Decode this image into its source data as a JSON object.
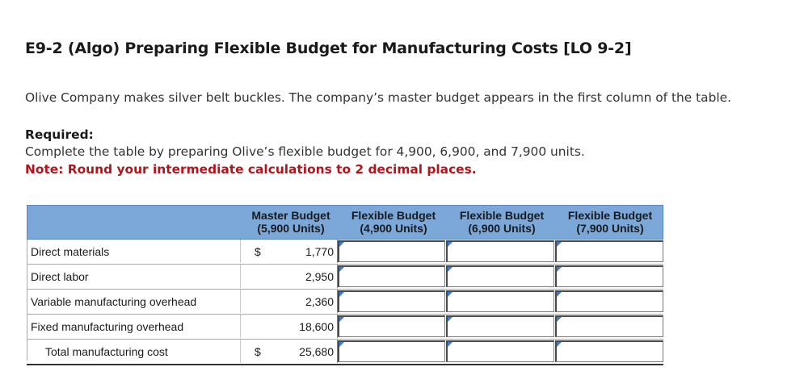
{
  "header": {
    "title": "E9-2 (Algo) Preparing Flexible Budget for Manufacturing Costs [LO 9-2]"
  },
  "problem": {
    "intro": "Olive Company makes silver belt buckles. The company’s master budget appears in the first column of the table.",
    "required_label": "Required:",
    "required_text": "Complete the table by preparing Olive’s flexible budget for 4,900, 6,900, and 7,900 units.",
    "note": "Note: Round your intermediate calculations to 2 decimal places."
  },
  "table": {
    "columns": [
      {
        "line1": "Master Budget",
        "line2": "(5,900 Units)"
      },
      {
        "line1": "Flexible Budget",
        "line2": "(4,900 Units)"
      },
      {
        "line1": "Flexible Budget",
        "line2": "(6,900 Units)"
      },
      {
        "line1": "Flexible Budget",
        "line2": "(7,900 Units)"
      }
    ],
    "rows": [
      {
        "label": "Direct materials",
        "dollar": "$",
        "master": "1,770",
        "flex1": "",
        "flex2": "",
        "flex3": ""
      },
      {
        "label": "Direct labor",
        "dollar": "",
        "master": "2,950",
        "flex1": "",
        "flex2": "",
        "flex3": ""
      },
      {
        "label": "Variable manufacturing overhead",
        "dollar": "",
        "master": "2,360",
        "flex1": "",
        "flex2": "",
        "flex3": ""
      },
      {
        "label": "Fixed manufacturing overhead",
        "dollar": "",
        "master": "18,600",
        "flex1": "",
        "flex2": "",
        "flex3": ""
      },
      {
        "label": "Total manufacturing cost",
        "dollar": "$",
        "master": "25,680",
        "flex1": "",
        "flex2": "",
        "flex3": ""
      }
    ]
  },
  "colors": {
    "header_bg": "#7ba7d9",
    "note_red": "#b0151c",
    "input_flag": "#3a7bd5"
  }
}
